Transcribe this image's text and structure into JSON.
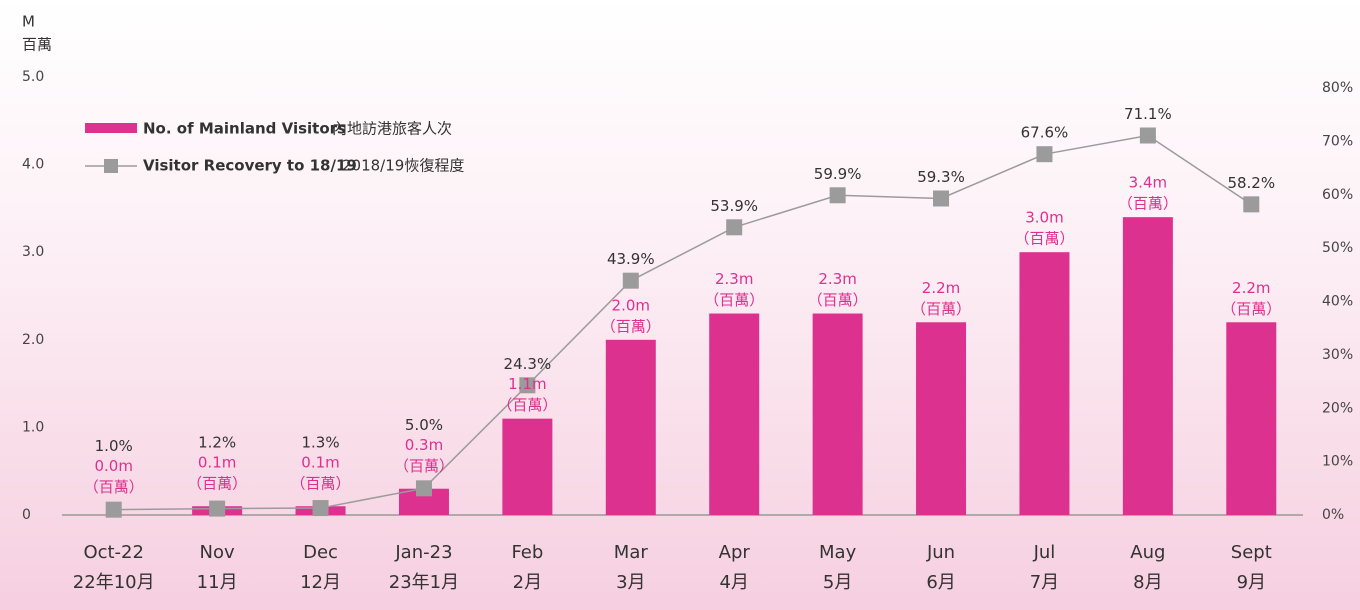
{
  "chart_data": {
    "type": "bar-line",
    "y_label": "M",
    "y_label_zh": "百萬",
    "categories": [
      [
        "Oct-22",
        "22年10月"
      ],
      [
        "Nov",
        "11月"
      ],
      [
        "Dec",
        "12月"
      ],
      [
        "Jan-23",
        "23年1月"
      ],
      [
        "Feb",
        "2月"
      ],
      [
        "Mar",
        "3月"
      ],
      [
        "Apr",
        "4月"
      ],
      [
        "May",
        "5月"
      ],
      [
        "Jun",
        "6月"
      ],
      [
        "Jul",
        "7月"
      ],
      [
        "Aug",
        "8月"
      ],
      [
        "Sept",
        "9月"
      ]
    ],
    "value_label_unit": "（百萬）",
    "series": [
      {
        "name": "No. of Mainland Visitors",
        "name_zh": "內地訪港旅客人次",
        "type": "bar",
        "color": "#dc318e",
        "values": [
          0.0,
          0.1,
          0.1,
          0.3,
          1.1,
          2.0,
          2.3,
          2.3,
          2.2,
          3.0,
          3.4,
          2.2
        ],
        "value_labels": [
          "0.0m",
          "0.1m",
          "0.1m",
          "0.3m",
          "1.1m",
          "2.0m",
          "2.3m",
          "2.3m",
          "2.2m",
          "3.0m",
          "3.4m",
          "2.2m"
        ]
      },
      {
        "name": "Visitor Recovery to 18/19",
        "name_zh": "2018/19恢復程度",
        "type": "line",
        "color": "#9b9b9b",
        "axis": "y2",
        "values": [
          1.0,
          1.2,
          1.3,
          5.0,
          24.3,
          43.9,
          53.9,
          59.9,
          59.3,
          67.6,
          71.1,
          58.2
        ],
        "value_labels": [
          "1.0%",
          "1.2%",
          "1.3%",
          "5.0%",
          "24.3%",
          "43.9%",
          "53.9%",
          "59.9%",
          "59.3%",
          "67.6%",
          "71.1%",
          "58.2%"
        ]
      }
    ],
    "ylim": [
      0,
      5
    ],
    "yticks": [
      0,
      {
        "value": 1,
        "label": "1.0"
      },
      {
        "value": 2,
        "label": "2.0"
      },
      {
        "value": 3,
        "label": "3.0"
      },
      {
        "value": 4,
        "label": "4.0"
      },
      {
        "value": 5,
        "label": "5.0"
      }
    ],
    "y2lim": [
      0,
      80
    ],
    "y2ticks": [
      {
        "value": 0,
        "label": "0%"
      },
      {
        "value": 10,
        "label": "10%"
      },
      {
        "value": 20,
        "label": "20%"
      },
      {
        "value": 30,
        "label": "30%"
      },
      {
        "value": 40,
        "label": "40%"
      },
      {
        "value": 50,
        "label": "50%"
      },
      {
        "value": 60,
        "label": "60%"
      },
      {
        "value": 70,
        "label": "70%"
      },
      {
        "value": 80,
        "label": "80%"
      }
    ],
    "legend": "top-left"
  }
}
